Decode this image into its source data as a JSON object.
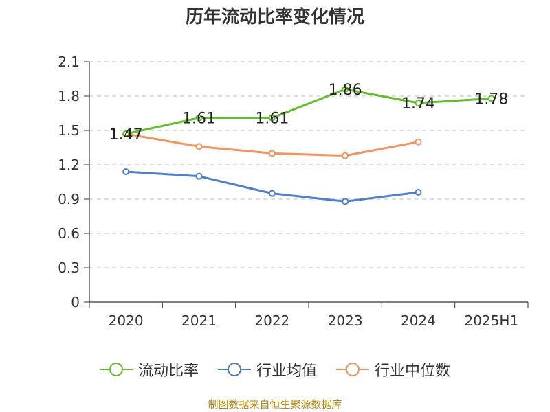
{
  "chart_data": {
    "type": "line",
    "title": "历年流动比率变化情况",
    "categories": [
      "2020",
      "2021",
      "2022",
      "2023",
      "2024",
      "2025H1"
    ],
    "ylim": [
      0,
      2.1
    ],
    "yticks": [
      "0",
      "0.3",
      "0.6",
      "0.9",
      "1.2",
      "1.5",
      "1.8",
      "2.1"
    ],
    "grid": true,
    "legend_position": "bottom",
    "series": [
      {
        "name": "流动比率",
        "color": "#5ec126",
        "values": [
          1.47,
          1.61,
          1.61,
          1.86,
          1.74,
          1.78
        ],
        "data_labels": [
          "1.47",
          "1.61",
          "1.61",
          "1.86",
          "1.74",
          "1.78"
        ]
      },
      {
        "name": "行业均值",
        "color": "#4a7fd4",
        "values": [
          1.14,
          1.1,
          0.95,
          0.88,
          0.96,
          null
        ]
      },
      {
        "name": "行业中位数",
        "color": "#f5935b",
        "values": [
          1.47,
          1.36,
          1.3,
          1.28,
          1.4,
          null
        ]
      }
    ]
  },
  "footer": {
    "source": "制图数据来自恒生聚源数据库"
  }
}
